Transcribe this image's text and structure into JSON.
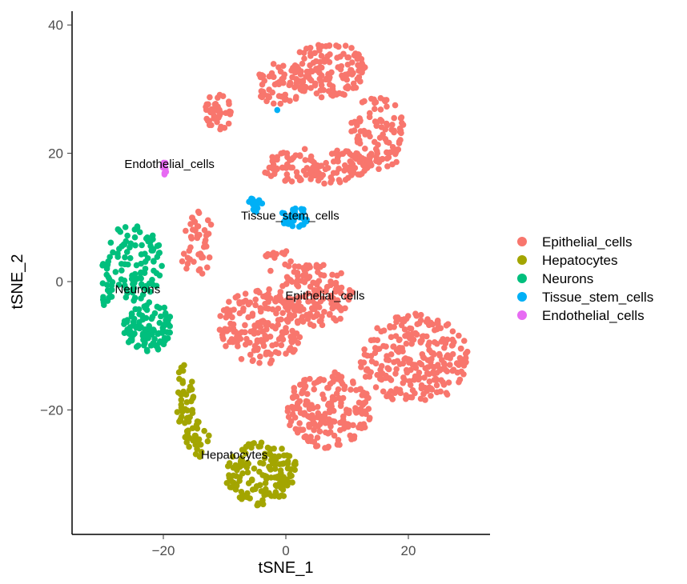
{
  "chart_data": {
    "type": "scatter",
    "title": "",
    "xlabel": "tSNE_1",
    "ylabel": "tSNE_2",
    "xlim": [
      -34.9,
      33.3
    ],
    "ylim": [
      -39.4,
      42
    ],
    "xticks": [
      -20,
      0,
      20
    ],
    "yticks": [
      -20,
      0,
      20,
      40
    ],
    "xtick_labels": [
      "−20",
      "0",
      "20"
    ],
    "ytick_labels": [
      "−20",
      "0",
      "20",
      "40"
    ],
    "grid": false,
    "legend_position": "right",
    "note": "points approximated as clusters of samples (center x/y, spread x/y, count) in data units",
    "series": [
      {
        "name": "Epithelial_cells",
        "color": "#F8766D",
        "clusters": [
          [
            -11,
            26.5,
            2.2,
            3,
            40
          ],
          [
            -1,
            31,
            4,
            3.5,
            60
          ],
          [
            7,
            33,
            6,
            4.5,
            130
          ],
          [
            15,
            23,
            4.5,
            6,
            110
          ],
          [
            5,
            18,
            9,
            2.8,
            120
          ],
          [
            -14.5,
            6,
            3,
            5,
            45
          ],
          [
            -4,
            -7,
            7,
            6,
            180
          ],
          [
            5,
            -2,
            6,
            5,
            140
          ],
          [
            21,
            -12,
            9,
            7,
            260
          ],
          [
            7,
            -20,
            7,
            6,
            200
          ],
          [
            -1,
            3,
            3,
            2,
            15
          ]
        ]
      },
      {
        "name": "Hepatocytes",
        "color": "#A3A500",
        "clusters": [
          [
            -16.5,
            -18,
            1.5,
            5,
            40
          ],
          [
            -14.5,
            -24.5,
            2,
            3,
            30
          ],
          [
            -4,
            -30,
            6,
            5,
            150
          ]
        ]
      },
      {
        "name": "Neurons",
        "color": "#00BF7D",
        "clusters": [
          [
            -25,
            3,
            5,
            6,
            110
          ],
          [
            -29.5,
            -2,
            1.5,
            2,
            12
          ],
          [
            -22.5,
            -7,
            4,
            4,
            110
          ]
        ]
      },
      {
        "name": "Tissue_stem_cells",
        "color": "#00B0F6",
        "clusters": [
          [
            -5,
            12,
            1.2,
            1.5,
            15
          ],
          [
            1.5,
            10,
            2.5,
            1.5,
            40
          ],
          [
            -1.5,
            26.7,
            0.2,
            0.2,
            1
          ]
        ]
      },
      {
        "name": "Endothelial_cells",
        "color": "#E76BF3",
        "clusters": [
          [
            -19.8,
            17.7,
            0.3,
            1,
            12
          ]
        ]
      }
    ],
    "annotations": [
      {
        "text": "Endothelial_cells",
        "x": -19,
        "y": 18.3
      },
      {
        "text": "Tissue_stem_cells",
        "x": 0.7,
        "y": 10.3
      },
      {
        "text": "Neurons",
        "x": -24.2,
        "y": -1.2
      },
      {
        "text": "Epithelial_cells",
        "x": 6.4,
        "y": -2.2
      },
      {
        "text": "Hepatocytes",
        "x": -8.4,
        "y": -27
      }
    ],
    "legend": [
      "Epithelial_cells",
      "Hepatocytes",
      "Neurons",
      "Tissue_stem_cells",
      "Endothelial_cells"
    ]
  }
}
